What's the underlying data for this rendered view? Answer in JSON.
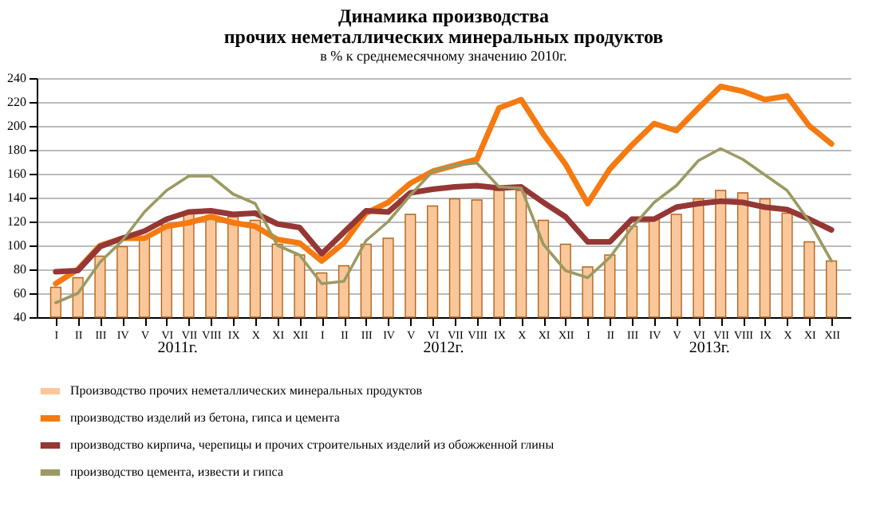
{
  "chart_data": {
    "type": "bar",
    "title": "Динамика производства\nпрочих неметаллических минеральных продуктов",
    "subtitle": "в % к среднемесячному значению 2010г.",
    "categories": [
      "I",
      "II",
      "III",
      "IV",
      "V",
      "VI",
      "VII",
      "VIII",
      "IX",
      "X",
      "XI",
      "XII",
      "I",
      "II",
      "III",
      "IV",
      "V",
      "VI",
      "VII",
      "VIII",
      "IX",
      "X",
      "XI",
      "XII",
      "I",
      "II",
      "III",
      "IV",
      "V",
      "VI",
      "VII",
      "VIII",
      "IX",
      "X",
      "XI",
      "XII"
    ],
    "series": [
      {
        "name": "Производство прочих неметаллических минеральных продуктов",
        "color": "#fac79a",
        "values": [
          65,
          73,
          91,
          99,
          106,
          117,
          128,
          125,
          124,
          121,
          101,
          92,
          77,
          83,
          101,
          106,
          126,
          133,
          139,
          138,
          146,
          146,
          121,
          101,
          82,
          92,
          116,
          122,
          126,
          139,
          146,
          144,
          139,
          127,
          103,
          87
        ]
      },
      {
        "name": "производство изделий из бетона, гипса и цемента",
        "type": "line",
        "color": "#f57a10",
        "values": [
          68,
          80,
          100,
          106,
          106,
          116,
          119,
          124,
          119,
          116,
          105,
          102,
          87,
          102,
          127,
          136,
          152,
          162,
          167,
          172,
          215,
          222,
          193,
          168,
          135,
          164,
          184,
          202,
          196,
          215,
          233,
          229,
          222,
          225,
          200,
          185
        ]
      },
      {
        "name": "производство кирпича, черепицы и прочих строительных изделий из обожженной глины",
        "type": "line",
        "color": "#953735",
        "values": [
          78,
          79,
          99,
          106,
          112,
          122,
          128,
          129,
          126,
          127,
          118,
          115,
          93,
          111,
          129,
          128,
          144,
          147,
          149,
          150,
          148,
          149,
          136,
          124,
          103,
          103,
          122,
          122,
          132,
          135,
          137,
          136,
          132,
          130,
          122,
          113
        ]
      },
      {
        "name": "производство цемента, извести и гипса",
        "type": "line",
        "color": "#9b9a62",
        "values": [
          52,
          60,
          86,
          104,
          128,
          146,
          158,
          158,
          143,
          135,
          100,
          92,
          68,
          70,
          104,
          120,
          142,
          162,
          167,
          169,
          149,
          148,
          101,
          79,
          73,
          90,
          115,
          136,
          150,
          171,
          181,
          172,
          159,
          146,
          120,
          87
        ]
      }
    ],
    "ylim": [
      40,
      240
    ],
    "yticks": [
      40,
      60,
      80,
      100,
      120,
      140,
      160,
      180,
      200,
      220,
      240
    ],
    "grid": "y",
    "legend": "bottom",
    "annotations": [
      "2011г.",
      "2012г.",
      "2013г."
    ]
  }
}
